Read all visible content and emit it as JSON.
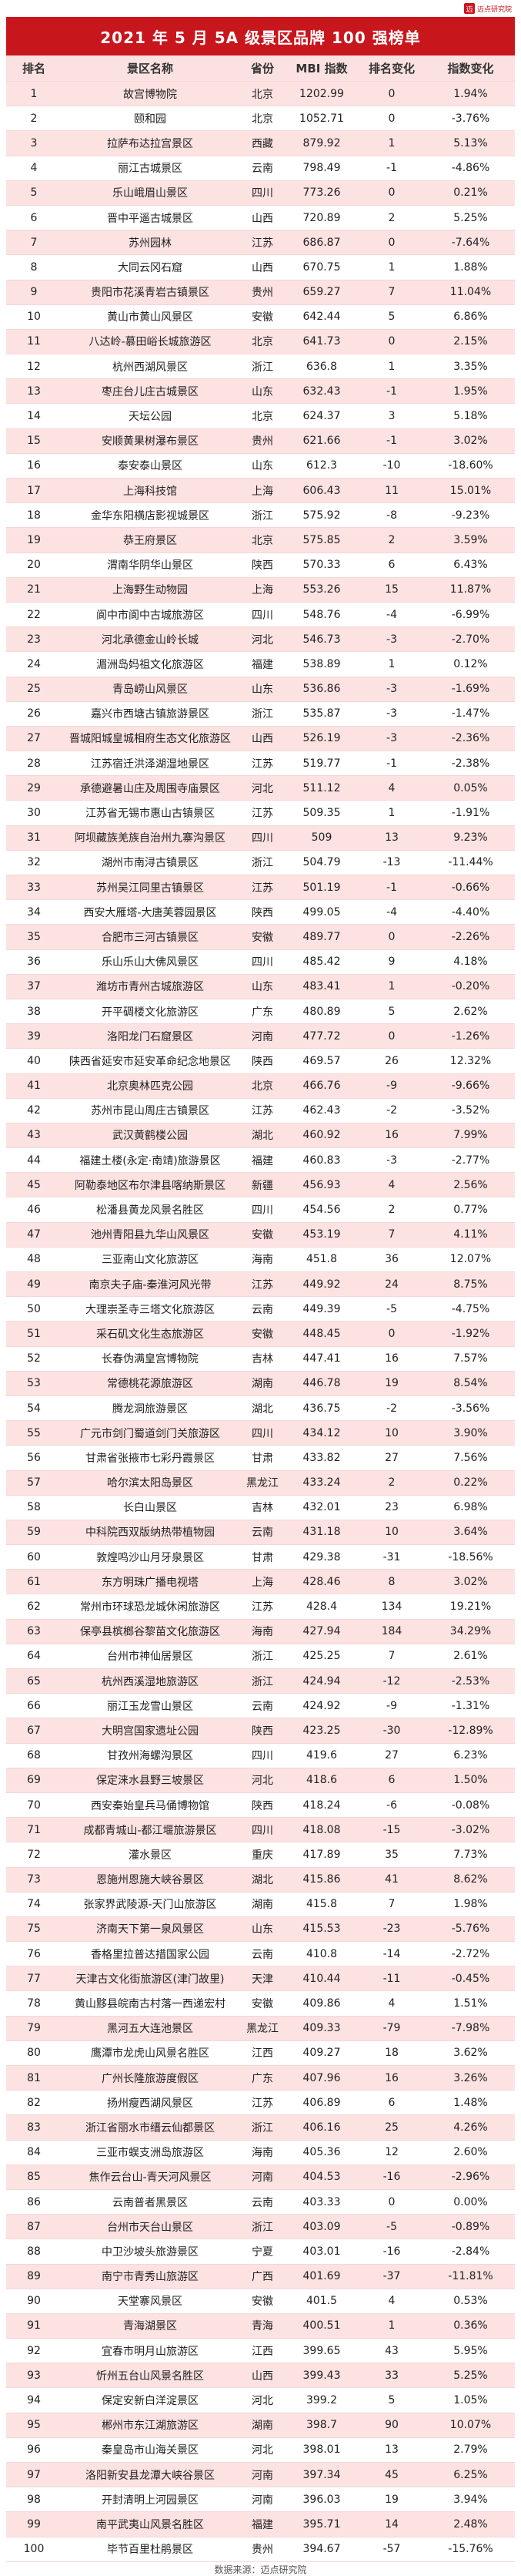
{
  "title": "2021 年 5 月 5A 级景区品牌 100 强榜单",
  "logo_text": "迈点研究院",
  "source": "数据来源：迈点研究院",
  "colors": {
    "header_bg": "#c8161d",
    "row_alt": "#fde2e2"
  },
  "chart_data": {
    "type": "table",
    "columns": [
      "排名",
      "景区名称",
      "省份",
      "MBI 指数",
      "排名变化",
      "指数变化"
    ],
    "rows": [
      [
        "1",
        "故宫博物院",
        "北京",
        "1202.99",
        "0",
        "1.94%"
      ],
      [
        "2",
        "颐和园",
        "北京",
        "1052.71",
        "0",
        "-3.76%"
      ],
      [
        "3",
        "拉萨布达拉宫景区",
        "西藏",
        "879.92",
        "1",
        "5.13%"
      ],
      [
        "4",
        "丽江古城景区",
        "云南",
        "798.49",
        "-1",
        "-4.86%"
      ],
      [
        "5",
        "乐山峨眉山景区",
        "四川",
        "773.26",
        "0",
        "0.21%"
      ],
      [
        "6",
        "晋中平遥古城景区",
        "山西",
        "720.89",
        "2",
        "5.25%"
      ],
      [
        "7",
        "苏州园林",
        "江苏",
        "686.87",
        "0",
        "-7.64%"
      ],
      [
        "8",
        "大同云冈石窟",
        "山西",
        "670.75",
        "1",
        "1.88%"
      ],
      [
        "9",
        "贵阳市花溪青岩古镇景区",
        "贵州",
        "659.27",
        "7",
        "11.04%"
      ],
      [
        "10",
        "黄山市黄山风景区",
        "安徽",
        "642.44",
        "5",
        "6.86%"
      ],
      [
        "11",
        "八达岭-慕田峪长城旅游区",
        "北京",
        "641.73",
        "0",
        "2.15%"
      ],
      [
        "12",
        "杭州西湖风景区",
        "浙江",
        "636.8",
        "1",
        "3.35%"
      ],
      [
        "13",
        "枣庄台儿庄古城景区",
        "山东",
        "632.43",
        "-1",
        "1.95%"
      ],
      [
        "14",
        "天坛公园",
        "北京",
        "624.37",
        "3",
        "5.18%"
      ],
      [
        "15",
        "安顺黄果树瀑布景区",
        "贵州",
        "621.66",
        "-1",
        "3.02%"
      ],
      [
        "16",
        "泰安泰山景区",
        "山东",
        "612.3",
        "-10",
        "-18.60%"
      ],
      [
        "17",
        "上海科技馆",
        "上海",
        "606.43",
        "11",
        "15.01%"
      ],
      [
        "18",
        "金华东阳横店影视城景区",
        "浙江",
        "575.92",
        "-8",
        "-9.23%"
      ],
      [
        "19",
        "恭王府景区",
        "北京",
        "575.85",
        "2",
        "3.59%"
      ],
      [
        "20",
        "渭南华阴华山景区",
        "陕西",
        "570.33",
        "6",
        "6.43%"
      ],
      [
        "21",
        "上海野生动物园",
        "上海",
        "553.26",
        "15",
        "11.87%"
      ],
      [
        "22",
        "阆中市阆中古城旅游区",
        "四川",
        "548.76",
        "-4",
        "-6.99%"
      ],
      [
        "23",
        "河北承德金山岭长城",
        "河北",
        "546.73",
        "-3",
        "-2.70%"
      ],
      [
        "24",
        "湄洲岛妈祖文化旅游区",
        "福建",
        "538.89",
        "1",
        "0.12%"
      ],
      [
        "25",
        "青岛崂山风景区",
        "山东",
        "536.86",
        "-3",
        "-1.69%"
      ],
      [
        "26",
        "嘉兴市西塘古镇旅游景区",
        "浙江",
        "535.87",
        "-3",
        "-1.47%"
      ],
      [
        "27",
        "晋城阳城皇城相府生态文化旅游区",
        "山西",
        "526.19",
        "-3",
        "-2.36%"
      ],
      [
        "28",
        "江苏宿迁洪泽湖湿地景区",
        "江苏",
        "519.77",
        "-1",
        "-2.38%"
      ],
      [
        "29",
        "承德避暑山庄及周围寺庙景区",
        "河北",
        "511.12",
        "4",
        "0.05%"
      ],
      [
        "30",
        "江苏省无锡市惠山古镇景区",
        "江苏",
        "509.35",
        "1",
        "-1.91%"
      ],
      [
        "31",
        "阿坝藏族羌族自治州九寨沟景区",
        "四川",
        "509",
        "13",
        "9.23%"
      ],
      [
        "32",
        "湖州市南浔古镇景区",
        "浙江",
        "504.79",
        "-13",
        "-11.44%"
      ],
      [
        "33",
        "苏州吴江同里古镇景区",
        "江苏",
        "501.19",
        "-1",
        "-0.66%"
      ],
      [
        "34",
        "西安大雁塔-大唐芙蓉园景区",
        "陕西",
        "499.05",
        "-4",
        "-4.40%"
      ],
      [
        "35",
        "合肥市三河古镇景区",
        "安徽",
        "489.77",
        "0",
        "-2.26%"
      ],
      [
        "36",
        "乐山乐山大佛风景区",
        "四川",
        "485.42",
        "9",
        "4.18%"
      ],
      [
        "37",
        "潍坊市青州古城旅游区",
        "山东",
        "483.41",
        "1",
        "-0.20%"
      ],
      [
        "38",
        "开平碉楼文化旅游区",
        "广东",
        "480.89",
        "5",
        "2.62%"
      ],
      [
        "39",
        "洛阳龙门石窟景区",
        "河南",
        "477.72",
        "0",
        "-1.26%"
      ],
      [
        "40",
        "陕西省延安市延安革命纪念地景区",
        "陕西",
        "469.57",
        "26",
        "12.32%"
      ],
      [
        "41",
        "北京奥林匹克公园",
        "北京",
        "466.76",
        "-9",
        "-9.66%"
      ],
      [
        "42",
        "苏州市昆山周庄古镇景区",
        "江苏",
        "462.43",
        "-2",
        "-3.52%"
      ],
      [
        "43",
        "武汉黄鹤楼公园",
        "湖北",
        "460.92",
        "16",
        "7.99%"
      ],
      [
        "44",
        "福建土楼(永定·南靖)旅游景区",
        "福建",
        "460.83",
        "-3",
        "-2.77%"
      ],
      [
        "45",
        "阿勒泰地区布尔津县喀纳斯景区",
        "新疆",
        "456.93",
        "4",
        "2.56%"
      ],
      [
        "46",
        "松潘县黄龙风景名胜区",
        "四川",
        "454.56",
        "2",
        "0.77%"
      ],
      [
        "47",
        "池州青阳县九华山风景区",
        "安徽",
        "453.19",
        "7",
        "4.11%"
      ],
      [
        "48",
        "三亚南山文化旅游区",
        "海南",
        "451.8",
        "36",
        "12.07%"
      ],
      [
        "49",
        "南京夫子庙-秦淮河风光带",
        "江苏",
        "449.92",
        "24",
        "8.75%"
      ],
      [
        "50",
        "大理崇圣寺三塔文化旅游区",
        "云南",
        "449.39",
        "-5",
        "-4.75%"
      ],
      [
        "51",
        "采石矶文化生态旅游区",
        "安徽",
        "448.45",
        "0",
        "-1.92%"
      ],
      [
        "52",
        "长春伪满皇宫博物院",
        "吉林",
        "447.41",
        "16",
        "7.57%"
      ],
      [
        "53",
        "常德桃花源旅游区",
        "湖南",
        "446.78",
        "19",
        "8.54%"
      ],
      [
        "54",
        "腾龙洞旅游景区",
        "湖北",
        "436.75",
        "-2",
        "-3.56%"
      ],
      [
        "55",
        "广元市剑门蜀道剑门关旅游区",
        "四川",
        "434.12",
        "10",
        "3.90%"
      ],
      [
        "56",
        "甘肃省张掖市七彩丹霞景区",
        "甘肃",
        "433.82",
        "27",
        "7.56%"
      ],
      [
        "57",
        "哈尔滨太阳岛景区",
        "黑龙江",
        "433.24",
        "2",
        "0.22%"
      ],
      [
        "58",
        "长白山景区",
        "吉林",
        "432.01",
        "23",
        "6.98%"
      ],
      [
        "59",
        "中科院西双版纳热带植物园",
        "云南",
        "431.18",
        "10",
        "3.64%"
      ],
      [
        "60",
        "敦煌鸣沙山月牙泉景区",
        "甘肃",
        "429.38",
        "-31",
        "-18.56%"
      ],
      [
        "61",
        "东方明珠广播电视塔",
        "上海",
        "428.46",
        "8",
        "3.02%"
      ],
      [
        "62",
        "常州市环球恐龙城休闲旅游区",
        "江苏",
        "428.4",
        "134",
        "19.21%"
      ],
      [
        "63",
        "保亭县槟榔谷黎苗文化旅游区",
        "海南",
        "427.94",
        "184",
        "34.29%"
      ],
      [
        "64",
        "台州市神仙居景区",
        "浙江",
        "425.25",
        "7",
        "2.61%"
      ],
      [
        "65",
        "杭州西溪湿地旅游区",
        "浙江",
        "424.94",
        "-12",
        "-2.53%"
      ],
      [
        "66",
        "丽江玉龙雪山景区",
        "云南",
        "424.92",
        "-9",
        "-1.31%"
      ],
      [
        "67",
        "大明宫国家遗址公园",
        "陕西",
        "423.25",
        "-30",
        "-12.89%"
      ],
      [
        "68",
        "甘孜州海螺沟景区",
        "四川",
        "419.6",
        "27",
        "6.23%"
      ],
      [
        "69",
        "保定涞水县野三坡景区",
        "河北",
        "418.6",
        "6",
        "1.50%"
      ],
      [
        "70",
        "西安秦始皇兵马俑博物馆",
        "陕西",
        "418.24",
        "-6",
        "-0.08%"
      ],
      [
        "71",
        "成都青城山-都江堰旅游景区",
        "四川",
        "418.08",
        "-15",
        "-3.02%"
      ],
      [
        "72",
        "灌水景区",
        "重庆",
        "417.89",
        "35",
        "7.73%"
      ],
      [
        "73",
        "恩施州恩施大峡谷景区",
        "湖北",
        "415.86",
        "41",
        "8.62%"
      ],
      [
        "74",
        "张家界武陵源-天门山旅游区",
        "湖南",
        "415.8",
        "7",
        "1.98%"
      ],
      [
        "75",
        "济南天下第一泉风景区",
        "山东",
        "415.53",
        "-23",
        "-5.76%"
      ],
      [
        "76",
        "香格里拉普达措国家公园",
        "云南",
        "410.8",
        "-14",
        "-2.72%"
      ],
      [
        "77",
        "天津古文化街旅游区(津门故里)",
        "天津",
        "410.44",
        "-11",
        "-0.45%"
      ],
      [
        "78",
        "黄山黟县皖南古村落一西递宏村",
        "安徽",
        "409.86",
        "4",
        "1.51%"
      ],
      [
        "79",
        "黑河五大连池景区",
        "黑龙江",
        "409.33",
        "-79",
        "-7.98%"
      ],
      [
        "80",
        "鹰潭市龙虎山风景名胜区",
        "江西",
        "409.27",
        "18",
        "3.62%"
      ],
      [
        "81",
        "广州长隆旅游度假区",
        "广东",
        "407.96",
        "16",
        "3.26%"
      ],
      [
        "82",
        "扬州瘦西湖风景区",
        "江苏",
        "406.89",
        "6",
        "1.48%"
      ],
      [
        "83",
        "浙江省丽水市缙云仙都景区",
        "浙江",
        "406.16",
        "25",
        "4.26%"
      ],
      [
        "84",
        "三亚市蜈支洲岛旅游区",
        "海南",
        "405.36",
        "12",
        "2.60%"
      ],
      [
        "85",
        "焦作云台山-青天河风景区",
        "河南",
        "404.53",
        "-16",
        "-2.96%"
      ],
      [
        "86",
        "云南普者黑景区",
        "云南",
        "403.33",
        "0",
        "0.00%"
      ],
      [
        "87",
        "台州市天台山景区",
        "浙江",
        "403.09",
        "-5",
        "-0.89%"
      ],
      [
        "88",
        "中卫沙坡头旅游景区",
        "宁夏",
        "403.01",
        "-16",
        "-2.84%"
      ],
      [
        "89",
        "南宁市青秀山旅游区",
        "广西",
        "401.69",
        "-37",
        "-11.81%"
      ],
      [
        "90",
        "天堂寨风景区",
        "安徽",
        "401.5",
        "4",
        "0.53%"
      ],
      [
        "91",
        "青海湖景区",
        "青海",
        "400.51",
        "1",
        "0.36%"
      ],
      [
        "92",
        "宜春市明月山旅游区",
        "江西",
        "399.65",
        "43",
        "5.95%"
      ],
      [
        "93",
        "忻州五台山风景名胜区",
        "山西",
        "399.43",
        "33",
        "5.25%"
      ],
      [
        "94",
        "保定安新白洋淀景区",
        "河北",
        "399.2",
        "5",
        "1.05%"
      ],
      [
        "95",
        "郴州市东江湖旅游区",
        "湖南",
        "398.7",
        "90",
        "10.07%"
      ],
      [
        "96",
        "秦皇岛市山海关景区",
        "河北",
        "398.01",
        "13",
        "2.79%"
      ],
      [
        "97",
        "洛阳新安县龙潭大峡谷景区",
        "河南",
        "397.34",
        "45",
        "6.25%"
      ],
      [
        "98",
        "开封清明上河园景区",
        "河南",
        "396.03",
        "19",
        "3.94%"
      ],
      [
        "99",
        "南平武夷山风景名胜区",
        "福建",
        "395.71",
        "14",
        "2.48%"
      ],
      [
        "100",
        "毕节百里杜鹃景区",
        "贵州",
        "394.67",
        "-57",
        "-15.76%"
      ]
    ]
  }
}
